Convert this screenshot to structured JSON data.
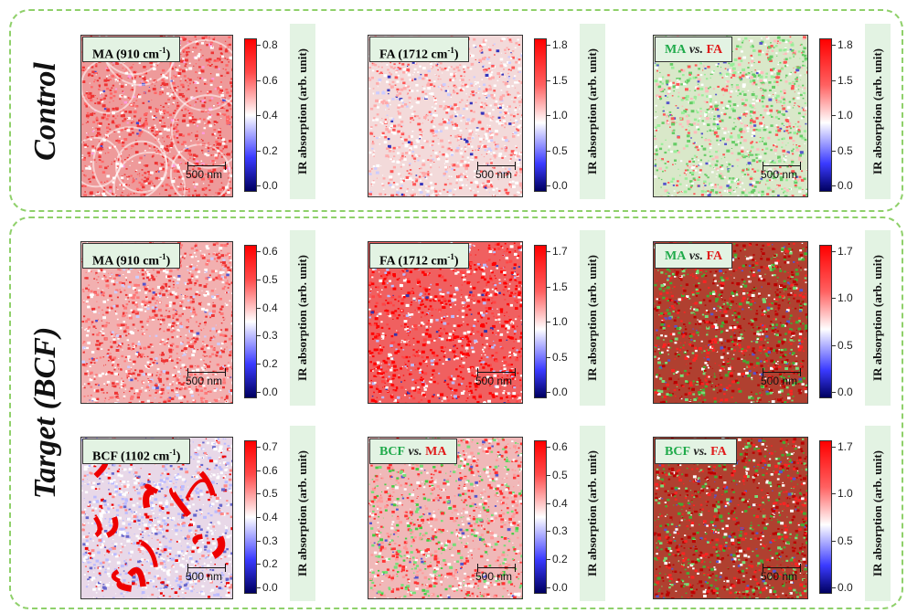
{
  "groups": {
    "control": {
      "label": "Control"
    },
    "target": {
      "label": "Target (BCF)"
    }
  },
  "scale_label": "500 nm",
  "unit_label": "IR absorption (arb. unit)",
  "panels": {
    "c1": {
      "title_pre": "MA (910 cm",
      "title_sup": "-1",
      "title_post": ")",
      "ticks": [
        "0.8",
        "0.6",
        "0.4",
        "0.2",
        "0.0"
      ]
    },
    "c2": {
      "title_pre": "FA (1712 cm",
      "title_sup": "-1",
      "title_post": ")",
      "ticks": [
        "1.8",
        "1.5",
        "1.0",
        "0.5",
        "0.0"
      ]
    },
    "c3": {
      "a": "MA",
      "vs": "vs.",
      "b": "FA",
      "ticks": [
        "1.8",
        "1.5",
        "1.0",
        "0.5",
        "0.0"
      ]
    },
    "t1": {
      "title_pre": "MA (910 cm",
      "title_sup": "-1",
      "title_post": ")",
      "ticks": [
        "0.6",
        "0.5",
        "0.4",
        "0.3",
        "0.2",
        "0.0"
      ]
    },
    "t2": {
      "title_pre": "FA (1712 cm",
      "title_sup": "-1",
      "title_post": ")",
      "ticks": [
        "1.7",
        "1.5",
        "1.0",
        "0.5",
        "0.0"
      ]
    },
    "t3": {
      "a": "MA",
      "vs": "vs.",
      "b": "FA",
      "ticks": [
        "1.7",
        "1.0",
        "0.5",
        "0.0"
      ]
    },
    "t4": {
      "title_pre": "BCF (1102 cm",
      "title_sup": "-1",
      "title_post": ")",
      "ticks": [
        "0.7",
        "0.6",
        "0.5",
        "0.4",
        "0.3",
        "0.2",
        "0.0"
      ]
    },
    "t5": {
      "a": "BCF",
      "vs": "vs.",
      "b": "MA",
      "ticks": [
        "0.6",
        "0.5",
        "0.4",
        "0.3",
        "0.2",
        "0.0"
      ]
    },
    "t6": {
      "a": "BCF",
      "vs": "vs.",
      "b": "FA",
      "ticks": [
        "1.7",
        "1.0",
        "0.5",
        "0.0"
      ]
    }
  }
}
